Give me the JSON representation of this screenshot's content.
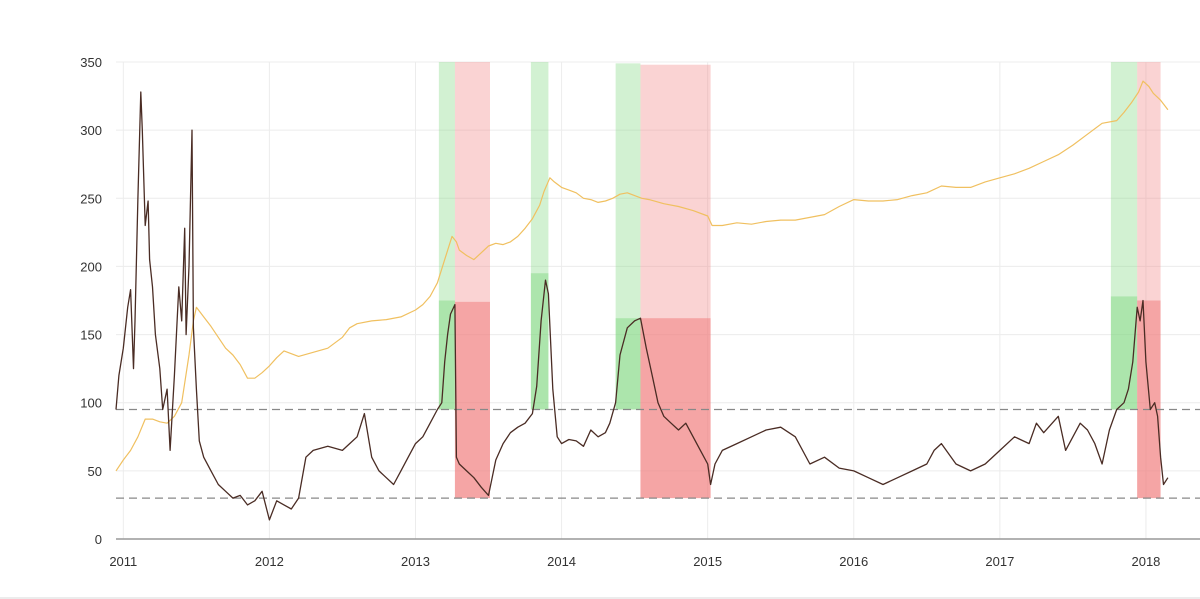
{
  "chart_data": {
    "type": "line",
    "title": "",
    "xlabel": "",
    "ylabel": "",
    "xlim": [
      2010.95,
      2018.37
    ],
    "ylim": [
      0,
      350
    ],
    "x_ticks": [
      {
        "value": 2011,
        "label": "2011"
      },
      {
        "value": 2012,
        "label": "2012"
      },
      {
        "value": 2013,
        "label": "2013"
      },
      {
        "value": 2014,
        "label": "2014"
      },
      {
        "value": 2015,
        "label": "2015"
      },
      {
        "value": 2016,
        "label": "2016"
      },
      {
        "value": 2017,
        "label": "2017"
      },
      {
        "value": 2018,
        "label": "2018"
      }
    ],
    "y_ticks": [
      {
        "value": 0,
        "label": "0"
      },
      {
        "value": 50,
        "label": "50"
      },
      {
        "value": 100,
        "label": "100"
      },
      {
        "value": 150,
        "label": "150"
      },
      {
        "value": 200,
        "label": "200"
      },
      {
        "value": 250,
        "label": "250"
      },
      {
        "value": 300,
        "label": "300"
      },
      {
        "value": 350,
        "label": "350"
      }
    ],
    "grid": true,
    "legend": "none",
    "colors": {
      "dark_series": "#4a2c24",
      "gold_series": "#f0c060",
      "green_band": "#7fd67f",
      "red_band": "#f08080",
      "threshold_line": "#888888",
      "grid": "#ececec",
      "axis": "#999999"
    },
    "threshold_lines": [
      95,
      30
    ],
    "bands": [
      {
        "x0": 2013.16,
        "x1": 2013.27,
        "y0": 95,
        "y1": 350,
        "color": "green",
        "tone": "light"
      },
      {
        "x0": 2013.16,
        "x1": 2013.27,
        "y0": 95,
        "y1": 175,
        "color": "green",
        "tone": "dark"
      },
      {
        "x0": 2013.27,
        "x1": 2013.51,
        "y0": 30,
        "y1": 350,
        "color": "red",
        "tone": "light"
      },
      {
        "x0": 2013.27,
        "x1": 2013.51,
        "y0": 30,
        "y1": 174,
        "color": "red",
        "tone": "dark"
      },
      {
        "x0": 2013.79,
        "x1": 2013.91,
        "y0": 95,
        "y1": 350,
        "color": "green",
        "tone": "light"
      },
      {
        "x0": 2013.79,
        "x1": 2013.91,
        "y0": 95,
        "y1": 195,
        "color": "green",
        "tone": "dark"
      },
      {
        "x0": 2014.37,
        "x1": 2014.54,
        "y0": 95,
        "y1": 349,
        "color": "green",
        "tone": "light"
      },
      {
        "x0": 2014.37,
        "x1": 2014.54,
        "y0": 95,
        "y1": 162,
        "color": "green",
        "tone": "dark"
      },
      {
        "x0": 2014.54,
        "x1": 2015.02,
        "y0": 30,
        "y1": 348,
        "color": "red",
        "tone": "light"
      },
      {
        "x0": 2014.54,
        "x1": 2015.02,
        "y0": 30,
        "y1": 162,
        "color": "red",
        "tone": "dark"
      },
      {
        "x0": 2017.76,
        "x1": 2017.94,
        "y0": 95,
        "y1": 350,
        "color": "green",
        "tone": "light"
      },
      {
        "x0": 2017.76,
        "x1": 2017.94,
        "y0": 95,
        "y1": 178,
        "color": "green",
        "tone": "dark"
      },
      {
        "x0": 2017.94,
        "x1": 2018.1,
        "y0": 30,
        "y1": 350,
        "color": "red",
        "tone": "light"
      },
      {
        "x0": 2017.94,
        "x1": 2018.1,
        "y0": 30,
        "y1": 175,
        "color": "red",
        "tone": "dark"
      }
    ],
    "series": [
      {
        "color": "gold",
        "x": [
          2010.95,
          2011.0,
          2011.05,
          2011.1,
          2011.15,
          2011.2,
          2011.25,
          2011.3,
          2011.35,
          2011.4,
          2011.45,
          2011.48,
          2011.5,
          2011.55,
          2011.6,
          2011.65,
          2011.7,
          2011.75,
          2011.8,
          2011.85,
          2011.9,
          2011.95,
          2012.0,
          2012.05,
          2012.1,
          2012.2,
          2012.3,
          2012.4,
          2012.5,
          2012.55,
          2012.6,
          2012.7,
          2012.8,
          2012.9,
          2013.0,
          2013.05,
          2013.1,
          2013.15,
          2013.2,
          2013.25,
          2013.28,
          2013.3,
          2013.35,
          2013.4,
          2013.45,
          2013.5,
          2013.55,
          2013.6,
          2013.65,
          2013.7,
          2013.75,
          2013.8,
          2013.85,
          2013.88,
          2013.92,
          2013.95,
          2014.0,
          2014.05,
          2014.1,
          2014.15,
          2014.2,
          2014.25,
          2014.3,
          2014.35,
          2014.4,
          2014.45,
          2014.5,
          2014.55,
          2014.6,
          2014.7,
          2014.8,
          2014.9,
          2015.0,
          2015.03,
          2015.1,
          2015.2,
          2015.3,
          2015.4,
          2015.5,
          2015.6,
          2015.7,
          2015.8,
          2015.9,
          2016.0,
          2016.1,
          2016.2,
          2016.3,
          2016.4,
          2016.5,
          2016.6,
          2016.7,
          2016.8,
          2016.9,
          2017.0,
          2017.1,
          2017.2,
          2017.3,
          2017.4,
          2017.5,
          2017.6,
          2017.7,
          2017.8,
          2017.85,
          2017.9,
          2017.95,
          2017.98,
          2018.02,
          2018.05,
          2018.1,
          2018.15
        ],
        "values": [
          50,
          58,
          65,
          75,
          88,
          88,
          86,
          85,
          90,
          100,
          135,
          160,
          170,
          163,
          156,
          148,
          140,
          135,
          128,
          118,
          118,
          122,
          127,
          133,
          138,
          134,
          137,
          140,
          148,
          155,
          158,
          160,
          161,
          163,
          168,
          172,
          178,
          188,
          205,
          222,
          218,
          212,
          208,
          205,
          210,
          215,
          217,
          216,
          218,
          222,
          228,
          235,
          245,
          255,
          265,
          262,
          258,
          256,
          254,
          250,
          249,
          247,
          248,
          250,
          253,
          254,
          252,
          250,
          249,
          246,
          244,
          241,
          237,
          230,
          230,
          232,
          231,
          233,
          234,
          234,
          236,
          238,
          244,
          249,
          248,
          248,
          249,
          252,
          254,
          259,
          258,
          258,
          262,
          265,
          268,
          272,
          277,
          282,
          289,
          297,
          305,
          307,
          313,
          320,
          328,
          336,
          332,
          327,
          322,
          315
        ]
      },
      {
        "color": "dark",
        "x": [
          2010.95,
          2010.97,
          2011.0,
          2011.03,
          2011.05,
          2011.07,
          2011.08,
          2011.1,
          2011.12,
          2011.13,
          2011.15,
          2011.17,
          2011.18,
          2011.2,
          2011.22,
          2011.25,
          2011.27,
          2011.3,
          2011.32,
          2011.35,
          2011.38,
          2011.4,
          2011.42,
          2011.43,
          2011.45,
          2011.47,
          2011.48,
          2011.5,
          2011.52,
          2011.55,
          2011.6,
          2011.65,
          2011.7,
          2011.75,
          2011.8,
          2011.85,
          2011.9,
          2011.95,
          2012.0,
          2012.05,
          2012.1,
          2012.15,
          2012.2,
          2012.25,
          2012.3,
          2012.4,
          2012.5,
          2012.55,
          2012.6,
          2012.65,
          2012.7,
          2012.75,
          2012.8,
          2012.85,
          2012.9,
          2012.95,
          2013.0,
          2013.05,
          2013.1,
          2013.15,
          2013.18,
          2013.2,
          2013.22,
          2013.24,
          2013.27,
          2013.28,
          2013.3,
          2013.35,
          2013.4,
          2013.45,
          2013.5,
          2013.55,
          2013.6,
          2013.65,
          2013.7,
          2013.75,
          2013.8,
          2013.83,
          2013.86,
          2013.89,
          2013.91,
          2013.94,
          2013.97,
          2014.0,
          2014.05,
          2014.1,
          2014.15,
          2014.2,
          2014.25,
          2014.3,
          2014.33,
          2014.37,
          2014.4,
          2014.45,
          2014.5,
          2014.54,
          2014.58,
          2014.62,
          2014.66,
          2014.7,
          2014.75,
          2014.8,
          2014.85,
          2014.9,
          2014.95,
          2015.0,
          2015.02,
          2015.05,
          2015.1,
          2015.2,
          2015.3,
          2015.4,
          2015.5,
          2015.6,
          2015.7,
          2015.8,
          2015.9,
          2016.0,
          2016.1,
          2016.2,
          2016.3,
          2016.4,
          2016.5,
          2016.55,
          2016.6,
          2016.7,
          2016.8,
          2016.9,
          2017.0,
          2017.1,
          2017.2,
          2017.25,
          2017.3,
          2017.4,
          2017.45,
          2017.5,
          2017.55,
          2017.6,
          2017.65,
          2017.7,
          2017.75,
          2017.8,
          2017.85,
          2017.88,
          2017.91,
          2017.94,
          2017.96,
          2017.98,
          2018.0,
          2018.03,
          2018.06,
          2018.08,
          2018.1,
          2018.12,
          2018.15
        ],
        "values": [
          95,
          120,
          140,
          170,
          183,
          125,
          160,
          250,
          328,
          300,
          230,
          248,
          205,
          185,
          150,
          125,
          95,
          110,
          65,
          120,
          185,
          160,
          228,
          150,
          200,
          300,
          155,
          110,
          72,
          60,
          50,
          40,
          35,
          30,
          32,
          25,
          28,
          35,
          14,
          28,
          25,
          22,
          30,
          60,
          65,
          68,
          65,
          70,
          75,
          92,
          60,
          50,
          45,
          40,
          50,
          60,
          70,
          75,
          85,
          95,
          100,
          130,
          150,
          165,
          172,
          60,
          55,
          50,
          45,
          38,
          32,
          58,
          70,
          78,
          82,
          85,
          92,
          112,
          160,
          190,
          180,
          110,
          75,
          70,
          73,
          72,
          68,
          80,
          75,
          78,
          85,
          100,
          135,
          155,
          160,
          162,
          140,
          120,
          100,
          90,
          85,
          80,
          85,
          75,
          65,
          55,
          40,
          55,
          65,
          70,
          75,
          80,
          82,
          75,
          55,
          60,
          52,
          50,
          45,
          40,
          45,
          50,
          55,
          65,
          70,
          55,
          50,
          55,
          65,
          75,
          70,
          85,
          78,
          90,
          65,
          75,
          85,
          80,
          70,
          55,
          80,
          95,
          100,
          110,
          130,
          170,
          160,
          175,
          130,
          95,
          100,
          90,
          60,
          40,
          45
        ]
      }
    ]
  }
}
